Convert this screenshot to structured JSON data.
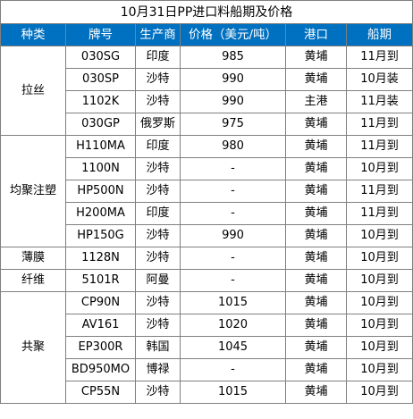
{
  "title": "10月31日PP进口料船期及价格",
  "headers": [
    "种类",
    "牌号",
    "生产商",
    "价格（美元/吨）",
    "港口",
    "船期"
  ],
  "groups": [
    {
      "category": "拉丝",
      "rows": [
        {
          "grade": "030SG",
          "producer": "印度",
          "price": "985",
          "port": "黄埔",
          "schedule": "11月到"
        },
        {
          "grade": "030SP",
          "producer": "沙特",
          "price": "990",
          "port": "黄埔",
          "schedule": "10月装"
        },
        {
          "grade": "1102K",
          "producer": "沙特",
          "price": "990",
          "port": "主港",
          "schedule": "11月装"
        },
        {
          "grade": "030GP",
          "producer": "俄罗斯",
          "price": "975",
          "port": "黄埔",
          "schedule": "11月到"
        }
      ]
    },
    {
      "category": "均聚注塑",
      "rows": [
        {
          "grade": "H110MA",
          "producer": "印度",
          "price": "980",
          "port": "黄埔",
          "schedule": "11月到"
        },
        {
          "grade": "1100N",
          "producer": "沙特",
          "price": "-",
          "port": "黄埔",
          "schedule": "10月到"
        },
        {
          "grade": "HP500N",
          "producer": "沙特",
          "price": "-",
          "port": "黄埔",
          "schedule": "11月到"
        },
        {
          "grade": "H200MA",
          "producer": "印度",
          "price": "-",
          "port": "黄埔",
          "schedule": "11月到"
        },
        {
          "grade": "HP150G",
          "producer": "沙特",
          "price": "990",
          "port": "黄埔",
          "schedule": "10月到"
        }
      ]
    },
    {
      "category": "薄膜",
      "rows": [
        {
          "grade": "1128N",
          "producer": "沙特",
          "price": "-",
          "port": "黄埔",
          "schedule": "10月到"
        }
      ]
    },
    {
      "category": "纤维",
      "rows": [
        {
          "grade": "5101R",
          "producer": "阿曼",
          "price": "-",
          "port": "黄埔",
          "schedule": "10月到"
        }
      ]
    },
    {
      "category": "共聚",
      "rows": [
        {
          "grade": "CP90N",
          "producer": "沙特",
          "price": "1015",
          "port": "黄埔",
          "schedule": "10月到"
        },
        {
          "grade": "AV161",
          "producer": "沙特",
          "price": "1020",
          "port": "黄埔",
          "schedule": "10月到"
        },
        {
          "grade": "EP300R",
          "producer": "韩国",
          "price": "1045",
          "port": "黄埔",
          "schedule": "10月到"
        },
        {
          "grade": "BD950MO",
          "producer": "博禄",
          "price": "-",
          "port": "黄埔",
          "schedule": "10月到"
        },
        {
          "grade": "CP55N",
          "producer": "沙特",
          "price": "1015",
          "port": "黄埔",
          "schedule": "10月到"
        }
      ]
    }
  ]
}
